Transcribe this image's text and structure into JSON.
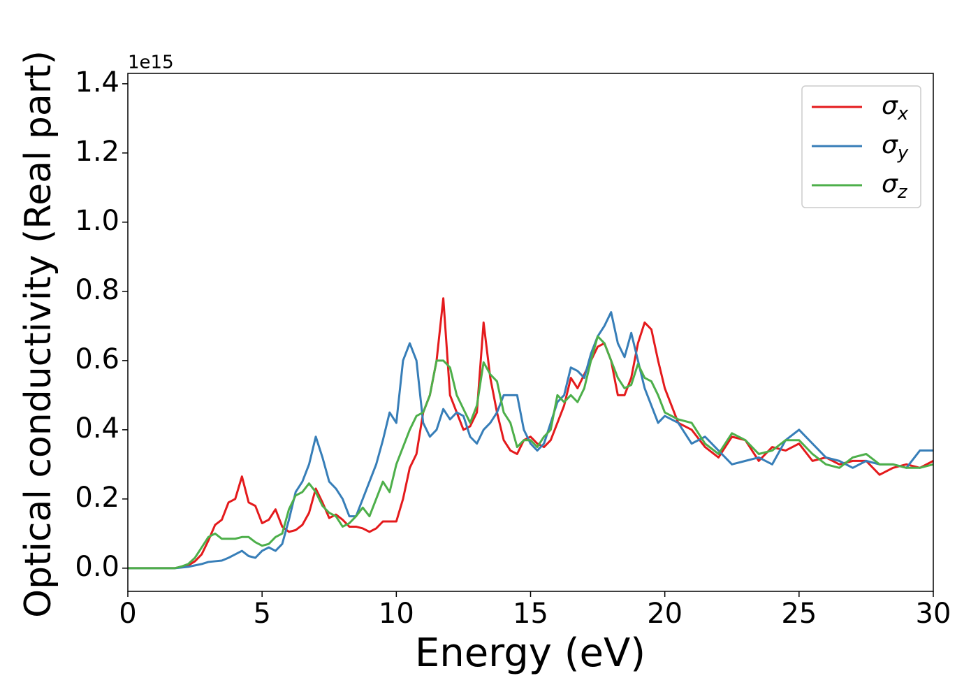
{
  "chart_data": {
    "type": "line",
    "x_label": "Energy (eV)",
    "y_label": "Optical conductivity (Real part)",
    "y_offset_label": "1e15",
    "xlim": [
      0,
      30
    ],
    "xticks": [
      0,
      5,
      10,
      15,
      20,
      25,
      30
    ],
    "ylim": [
      -0.067,
      1.43
    ],
    "yticks": [
      {
        "value": 0,
        "label": "0.0"
      },
      {
        "value": 0.2,
        "label": "0.2"
      },
      {
        "value": 0.4,
        "label": "0.4"
      },
      {
        "value": 0.6,
        "label": "0.6"
      },
      {
        "value": 0.8,
        "label": "0.8"
      },
      {
        "value": 1.0,
        "label": "1.0"
      },
      {
        "value": 1.2,
        "label": "1.2"
      },
      {
        "value": 1.4,
        "label": "1.4"
      }
    ],
    "legend": "upper right",
    "x": [
      0,
      0.25,
      0.5,
      0.75,
      1,
      1.25,
      1.5,
      1.75,
      2,
      2.25,
      2.5,
      2.75,
      3,
      3.25,
      3.5,
      3.75,
      4,
      4.25,
      4.5,
      4.75,
      5,
      5.25,
      5.5,
      5.75,
      6,
      6.25,
      6.5,
      6.75,
      7,
      7.25,
      7.5,
      7.75,
      8,
      8.25,
      8.5,
      8.75,
      9,
      9.25,
      9.5,
      9.75,
      10,
      10.25,
      10.5,
      10.75,
      11,
      11.25,
      11.5,
      11.75,
      12,
      12.25,
      12.5,
      12.75,
      13,
      13.25,
      13.5,
      13.75,
      14,
      14.25,
      14.5,
      14.75,
      15,
      15.25,
      15.5,
      15.75,
      16,
      16.25,
      16.5,
      16.75,
      17,
      17.25,
      17.5,
      17.75,
      18,
      18.25,
      18.5,
      18.75,
      19,
      19.25,
      19.5,
      19.75,
      20,
      20.5,
      21,
      21.5,
      22,
      22.5,
      23,
      23.5,
      24,
      24.5,
      25,
      25.5,
      26,
      26.5,
      27,
      27.5,
      28,
      28.5,
      29,
      29.5,
      30
    ],
    "series": [
      {
        "name": "σx",
        "color": "#e41a1c",
        "values": [
          0,
          0,
          0,
          0,
          0,
          0,
          0,
          0,
          0.004,
          0.008,
          0.02,
          0.04,
          0.08,
          0.125,
          0.14,
          0.19,
          0.2,
          0.265,
          0.19,
          0.18,
          0.13,
          0.14,
          0.17,
          0.12,
          0.105,
          0.11,
          0.125,
          0.16,
          0.23,
          0.19,
          0.145,
          0.155,
          0.14,
          0.12,
          0.12,
          0.115,
          0.105,
          0.115,
          0.135,
          0.135,
          0.135,
          0.2,
          0.29,
          0.33,
          0.45,
          0.5,
          0.6,
          0.78,
          0.5,
          0.45,
          0.4,
          0.41,
          0.45,
          0.71,
          0.55,
          0.45,
          0.37,
          0.34,
          0.33,
          0.37,
          0.38,
          0.36,
          0.35,
          0.37,
          0.42,
          0.47,
          0.55,
          0.52,
          0.56,
          0.6,
          0.64,
          0.65,
          0.6,
          0.5,
          0.5,
          0.55,
          0.65,
          0.71,
          0.69,
          0.6,
          0.52,
          0.42,
          0.4,
          0.35,
          0.32,
          0.38,
          0.37,
          0.31,
          0.35,
          0.34,
          0.36,
          0.31,
          0.32,
          0.3,
          0.31,
          0.31,
          0.27,
          0.29,
          0.3,
          0.29,
          0.31
        ]
      },
      {
        "name": "σy",
        "color": "#377eb8",
        "values": [
          0,
          0,
          0,
          0,
          0,
          0,
          0,
          0,
          0.002,
          0.004,
          0.008,
          0.012,
          0.018,
          0.02,
          0.022,
          0.03,
          0.04,
          0.05,
          0.035,
          0.03,
          0.05,
          0.06,
          0.05,
          0.07,
          0.14,
          0.22,
          0.25,
          0.3,
          0.38,
          0.32,
          0.25,
          0.23,
          0.2,
          0.15,
          0.15,
          0.2,
          0.25,
          0.3,
          0.37,
          0.45,
          0.42,
          0.6,
          0.65,
          0.6,
          0.42,
          0.38,
          0.4,
          0.46,
          0.43,
          0.45,
          0.44,
          0.38,
          0.36,
          0.4,
          0.42,
          0.45,
          0.5,
          0.5,
          0.5,
          0.4,
          0.36,
          0.34,
          0.36,
          0.42,
          0.48,
          0.5,
          0.58,
          0.57,
          0.55,
          0.62,
          0.67,
          0.7,
          0.74,
          0.65,
          0.61,
          0.68,
          0.6,
          0.52,
          0.47,
          0.42,
          0.44,
          0.42,
          0.36,
          0.38,
          0.34,
          0.3,
          0.31,
          0.32,
          0.3,
          0.37,
          0.4,
          0.36,
          0.32,
          0.31,
          0.29,
          0.31,
          0.3,
          0.3,
          0.29,
          0.34,
          0.34
        ]
      },
      {
        "name": "σz",
        "color": "#4daf4a",
        "values": [
          0,
          0,
          0,
          0,
          0,
          0,
          0,
          0,
          0.005,
          0.012,
          0.03,
          0.06,
          0.09,
          0.1,
          0.085,
          0.085,
          0.085,
          0.09,
          0.09,
          0.075,
          0.065,
          0.07,
          0.09,
          0.1,
          0.17,
          0.21,
          0.22,
          0.245,
          0.22,
          0.18,
          0.16,
          0.15,
          0.12,
          0.13,
          0.15,
          0.175,
          0.15,
          0.2,
          0.25,
          0.22,
          0.3,
          0.35,
          0.4,
          0.44,
          0.45,
          0.5,
          0.6,
          0.6,
          0.58,
          0.5,
          0.46,
          0.42,
          0.47,
          0.595,
          0.56,
          0.54,
          0.45,
          0.42,
          0.35,
          0.37,
          0.37,
          0.35,
          0.38,
          0.4,
          0.5,
          0.48,
          0.5,
          0.48,
          0.52,
          0.6,
          0.67,
          0.65,
          0.6,
          0.55,
          0.52,
          0.53,
          0.59,
          0.55,
          0.54,
          0.5,
          0.45,
          0.43,
          0.42,
          0.36,
          0.33,
          0.39,
          0.37,
          0.33,
          0.34,
          0.37,
          0.37,
          0.33,
          0.3,
          0.29,
          0.32,
          0.33,
          0.3,
          0.3,
          0.29,
          0.29,
          0.3
        ]
      }
    ]
  }
}
